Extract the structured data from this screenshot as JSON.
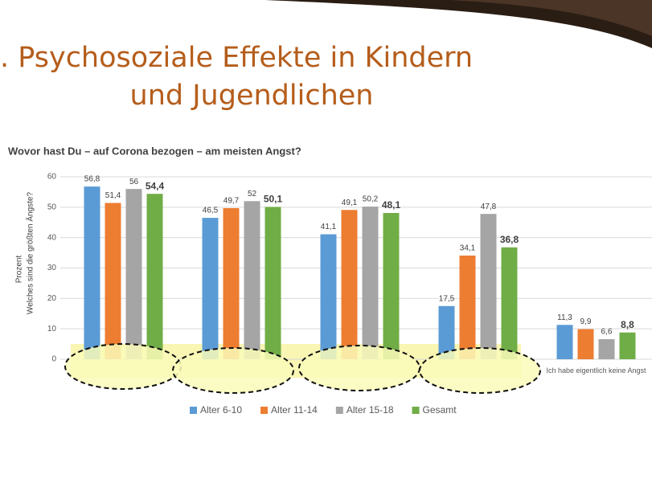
{
  "slide_title": [
    ". Psychosoziale Effekte in Kindern",
    "und Jugendlichen"
  ],
  "chart_data": {
    "type": "bar",
    "title": "Wovor hast Du – auf Corona bezogen – am meisten Angst?",
    "ylabel": [
      "Prozent",
      "Welches sind die größten Ängste?"
    ],
    "categories": [
      null,
      null,
      null,
      null,
      "Ich habe eigentlich keine Angst"
    ],
    "series": [
      {
        "name": "Alter 6-10",
        "color": "#5b9bd5",
        "values": [
          56.8,
          46.5,
          41.1,
          17.5,
          11.3
        ],
        "value_labels": [
          "56,8",
          "46,5",
          "41,1",
          "17,5",
          "11,3"
        ]
      },
      {
        "name": "Alter 11-14",
        "color": "#ed7d31",
        "values": [
          51.4,
          49.7,
          49.1,
          34.1,
          9.9
        ],
        "value_labels": [
          "51,4",
          "49,7",
          "49,1",
          "34,1",
          "9,9"
        ]
      },
      {
        "name": "Alter 15-18",
        "color": "#a5a5a5",
        "values": [
          56,
          52,
          50.2,
          47.8,
          6.6
        ],
        "value_labels": [
          "56",
          "52",
          "50,2",
          "47,8",
          "6,6"
        ]
      },
      {
        "name": "Gesamt",
        "color": "#70ad47",
        "values": [
          54.4,
          50.1,
          48.1,
          36.8,
          8.8
        ],
        "value_labels": [
          "54,4",
          "50,1",
          "48,1",
          "36,8",
          "8,8"
        ]
      }
    ],
    "ylim": [
      0,
      60
    ],
    "yticks": [
      0,
      10,
      20,
      30,
      40,
      50,
      60
    ],
    "grid": true,
    "legend": "bottom"
  }
}
